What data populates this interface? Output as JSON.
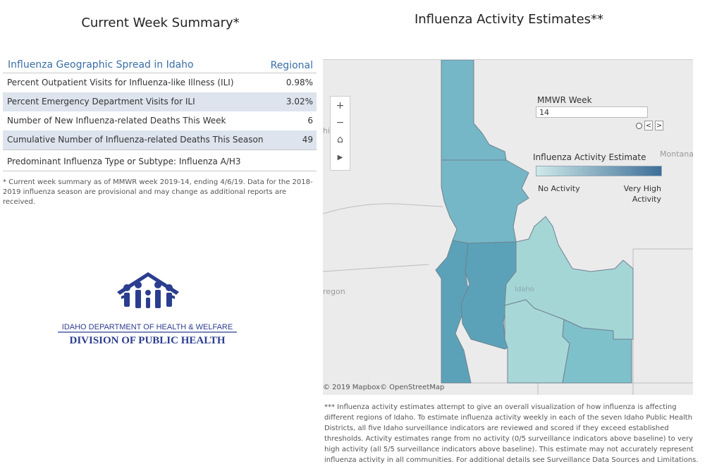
{
  "summary": {
    "title": "Current Week Summary*",
    "table_heading": "Influenza Geographic Spread in Idaho",
    "column_header": "Regional",
    "rows": [
      {
        "label": "Percent Outpatient Visits for Influenza-like Illness (ILI)",
        "value": "0.98%"
      },
      {
        "label": "Percent Emergency Department Visits for ILI",
        "value": "3.02%"
      },
      {
        "label": "Number of New Influenza-related Deaths This Week",
        "value": "6"
      },
      {
        "label": "Cumulative Number of Influenza-related Deaths This Season",
        "value": "49"
      }
    ],
    "predominant": "Predominant Influenza Type or Subtype: Influenza A/H3",
    "footnote": "* Current week summary as of MMWR week 2019-14, ending 4/6/19. Data for the 2018-2019 influenza season are provisional and may change as additional reports are received."
  },
  "logo": {
    "line1": "IDAHO DEPARTMENT OF HEALTH & WELFARE",
    "line2": "DIVISION OF PUBLIC HEALTH",
    "color": "#2b3d8f"
  },
  "map": {
    "title": "Influenza Activity Estimates**",
    "zoom_in": "+",
    "zoom_out": "−",
    "home": "⌂",
    "play": "▶",
    "mmwr_label": "MMWR Week",
    "mmwr_value": "14",
    "prev": "<",
    "next": ">",
    "legend_title": "Influenza Activity Estimate",
    "legend_low": "No Activity",
    "legend_high": "Very High Activity",
    "legend_colors": {
      "low": "#cfe9e9",
      "high": "#3e6f98"
    },
    "base_labels": {
      "washington": "hin",
      "montana": "Montana",
      "oregon": "regon",
      "idaho": "Idaho"
    },
    "attribution": "© 2019 Mapbox© OpenStreetMap",
    "district_colors": [
      "#75b7c6",
      "#75b7c6",
      "#5ba2b8",
      "#5ba2b8",
      "#a8d7d7",
      "#7fc1ca",
      "#a5d6d6"
    ]
  },
  "note": "*** Influenza activity estimates attempt to give an overall visualization of how influenza is affecting different regions of Idaho. To estimate influenza activity weekly in each of the seven Idaho Public Health Districts, all five Idaho surveillance indicators are reviewed and scored if they exceed established thresholds. Activity estimates range from no activity (0/5 surveillance indicators above baseline) to very high activity (all 5/5 surveillance indicators above baseline). This estimate may not accurately represent influenza activity in all communities. For additional details see Surveillance Data Sources and Limitations."
}
